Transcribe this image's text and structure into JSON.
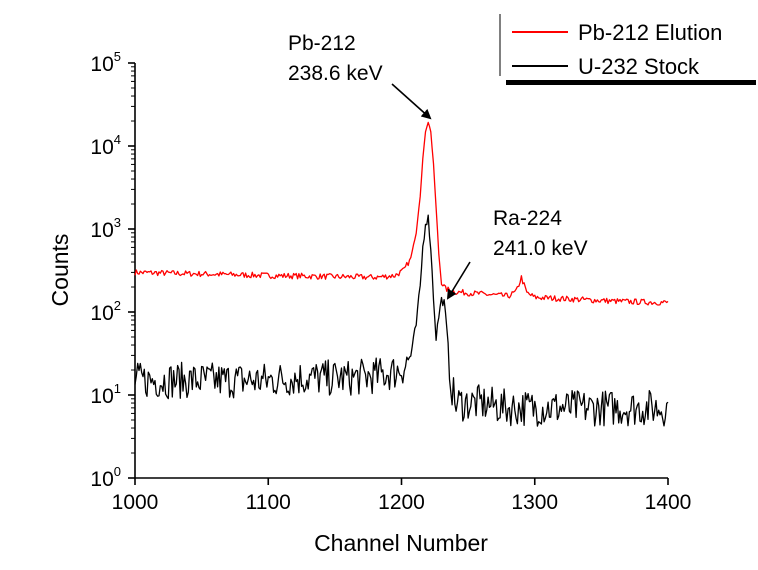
{
  "chart_data": {
    "type": "line",
    "xlabel": "Channel Number",
    "ylabel": "Counts",
    "xlim": [
      1000,
      1400
    ],
    "ylim": [
      1,
      100000
    ],
    "yscale": "log",
    "xticks": [
      "1000",
      "1100",
      "1200",
      "1300",
      "1400"
    ],
    "yticks": [
      {
        "base": "10",
        "exp": "0",
        "value": 1
      },
      {
        "base": "10",
        "exp": "1",
        "value": 10
      },
      {
        "base": "10",
        "exp": "2",
        "value": 100
      },
      {
        "base": "10",
        "exp": "3",
        "value": 1000
      },
      {
        "base": "10",
        "exp": "4",
        "value": 10000
      },
      {
        "base": "10",
        "exp": "5",
        "value": 100000
      }
    ],
    "grid": false,
    "legend_position": "top-right",
    "series": [
      {
        "name": "Pb-212 Elution",
        "color": "#ff0000",
        "points": [
          [
            1000,
            300
          ],
          [
            1020,
            295
          ],
          [
            1040,
            290
          ],
          [
            1060,
            285
          ],
          [
            1080,
            280
          ],
          [
            1100,
            275
          ],
          [
            1120,
            272
          ],
          [
            1140,
            268
          ],
          [
            1160,
            265
          ],
          [
            1180,
            262
          ],
          [
            1195,
            275
          ],
          [
            1202,
            320
          ],
          [
            1207,
            450
          ],
          [
            1211,
            900
          ],
          [
            1214,
            2500
          ],
          [
            1216,
            7000
          ],
          [
            1218,
            15000
          ],
          [
            1220,
            19500
          ],
          [
            1222,
            15000
          ],
          [
            1224,
            6000
          ],
          [
            1226,
            1800
          ],
          [
            1228,
            500
          ],
          [
            1230,
            230
          ],
          [
            1233,
            190
          ],
          [
            1240,
            175
          ],
          [
            1260,
            165
          ],
          [
            1280,
            155
          ],
          [
            1286,
            175
          ],
          [
            1290,
            260
          ],
          [
            1294,
            170
          ],
          [
            1300,
            150
          ],
          [
            1320,
            145
          ],
          [
            1340,
            140
          ],
          [
            1360,
            135
          ],
          [
            1380,
            132
          ],
          [
            1400,
            130
          ]
        ]
      },
      {
        "name": "U-232 Stock",
        "color": "#000000",
        "points": [
          [
            1000,
            15
          ],
          [
            1020,
            15
          ],
          [
            1040,
            15
          ],
          [
            1060,
            15
          ],
          [
            1080,
            15
          ],
          [
            1100,
            15
          ],
          [
            1120,
            16
          ],
          [
            1140,
            16
          ],
          [
            1160,
            16
          ],
          [
            1180,
            17
          ],
          [
            1195,
            19
          ],
          [
            1202,
            22
          ],
          [
            1207,
            30
          ],
          [
            1211,
            70
          ],
          [
            1214,
            200
          ],
          [
            1216,
            600
          ],
          [
            1218,
            1200
          ],
          [
            1220,
            1350
          ],
          [
            1222,
            600
          ],
          [
            1224,
            150
          ],
          [
            1226,
            50
          ],
          [
            1228,
            90
          ],
          [
            1230,
            140
          ],
          [
            1232,
            130
          ],
          [
            1234,
            60
          ],
          [
            1237,
            15
          ],
          [
            1240,
            8
          ],
          [
            1260,
            8
          ],
          [
            1280,
            7
          ],
          [
            1300,
            7
          ],
          [
            1320,
            7
          ],
          [
            1340,
            7
          ],
          [
            1360,
            7
          ],
          [
            1380,
            7
          ],
          [
            1400,
            7
          ]
        ]
      }
    ],
    "annotations": [
      {
        "lines": [
          "Pb-212",
          "238.6 keV"
        ],
        "target": [
          1220,
          19500
        ]
      },
      {
        "lines": [
          "Ra-224",
          "241.0 keV"
        ],
        "target": [
          1230,
          140
        ]
      }
    ]
  }
}
